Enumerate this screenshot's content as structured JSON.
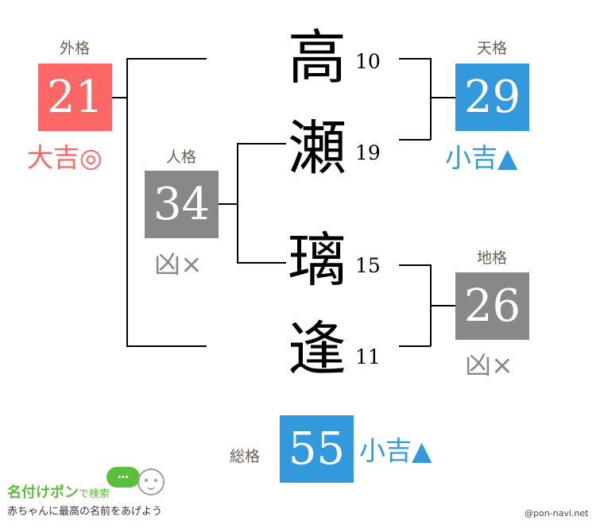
{
  "name": [
    {
      "char": "高",
      "strokes": "10"
    },
    {
      "char": "瀬",
      "strokes": "19"
    },
    {
      "char": "璃",
      "strokes": "15"
    },
    {
      "char": "逢",
      "strokes": "11"
    }
  ],
  "gaikaku": {
    "label": "外格",
    "value": "21",
    "fortune": "大吉◎",
    "color": "#ff6666"
  },
  "jinkaku": {
    "label": "人格",
    "value": "34",
    "fortune": "凶×",
    "color": "#888888"
  },
  "tenkaku": {
    "label": "天格",
    "value": "29",
    "fortune": "小吉▲",
    "color": "#3399dd"
  },
  "chikaku": {
    "label": "地格",
    "value": "26",
    "fortune": "凶×",
    "color": "#888888"
  },
  "soukaku": {
    "label": "総格",
    "value": "55",
    "fortune": "小吉▲",
    "color": "#3399dd"
  },
  "logo": {
    "title": "名付けポン",
    "suffix": "で検索",
    "tagline": "赤ちゃんに最高の名前をあげよう",
    "bubble": "…"
  },
  "credit": "@pon-navi.net"
}
